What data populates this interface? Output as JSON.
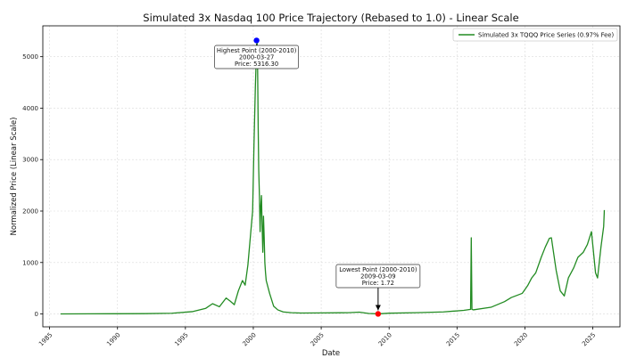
{
  "chart_data": {
    "type": "line",
    "title": "Simulated 3x Nasdaq 100 Price Trajectory (Rebased to 1.0) - Linear Scale",
    "xlabel": "Date",
    "ylabel": "Normalized Price (Linear Scale)",
    "xlim": [
      1984.5,
      2027.0
    ],
    "ylim": [
      -250,
      5600
    ],
    "x_ticks": [
      1985,
      1990,
      1995,
      2000,
      2005,
      2010,
      2015,
      2020,
      2025
    ],
    "y_ticks": [
      0,
      1000,
      2000,
      3000,
      4000,
      5000
    ],
    "grid": true,
    "legend_position": "top-right",
    "series_color": "#228b22",
    "series": [
      {
        "name": "Simulated 3x TQQQ Price Series (0.97% Fee)",
        "x": [
          1985.8,
          1988.0,
          1990.0,
          1992.0,
          1994.0,
          1995.5,
          1996.5,
          1997.0,
          1997.5,
          1998.0,
          1998.3,
          1998.6,
          1998.9,
          1999.2,
          1999.4,
          1999.6,
          1999.8,
          1999.95,
          2000.05,
          2000.15,
          2000.23,
          2000.28,
          2000.32,
          2000.36,
          2000.4,
          2000.45,
          2000.5,
          2000.55,
          2000.6,
          2000.65,
          2000.7,
          2000.75,
          2000.8,
          2000.85,
          2000.9,
          2000.95,
          2001.0,
          2001.2,
          2001.5,
          2001.8,
          2002.2,
          2002.8,
          2003.5,
          2005.0,
          2007.0,
          2007.8,
          2008.5,
          2009.19,
          2010.0,
          2012.0,
          2014.0,
          2015.5,
          2016.0,
          2016.05,
          2016.1,
          2016.2,
          2017.5,
          2018.5,
          2019.0,
          2019.8,
          2020.2,
          2020.5,
          2020.8,
          2021.2,
          2021.5,
          2021.8,
          2021.95,
          2022.3,
          2022.6,
          2022.9,
          2023.2,
          2023.6,
          2023.9,
          2024.3,
          2024.6,
          2024.9,
          2025.2,
          2025.35,
          2025.6,
          2025.8,
          2025.85
        ],
        "y": [
          1,
          3,
          4,
          6,
          14,
          45,
          110,
          200,
          140,
          310,
          250,
          180,
          450,
          650,
          560,
          950,
          1550,
          2000,
          3300,
          4400,
          5100,
          5316.3,
          4700,
          3600,
          2800,
          2300,
          1600,
          2100,
          2300,
          1700,
          1200,
          1900,
          1500,
          1000,
          800,
          650,
          600,
          400,
          150,
          80,
          40,
          25,
          18,
          20,
          25,
          35,
          10,
          1.72,
          15,
          25,
          40,
          70,
          90,
          1480,
          90,
          80,
          130,
          240,
          320,
          400,
          550,
          700,
          800,
          1100,
          1300,
          1470,
          1480,
          850,
          450,
          350,
          700,
          900,
          1100,
          1200,
          1350,
          1600,
          800,
          700,
          1300,
          1700,
          2020
        ]
      }
    ],
    "annotations": [
      {
        "label": "Highest Point (2000-2010)",
        "date": "2000-03-27",
        "price_text": "Price: 5316.30",
        "x": 2000.24,
        "y": 5316.3,
        "marker_color": "#0000ff"
      },
      {
        "label": "Lowest Point (2000-2010)",
        "date": "2009-03-09",
        "price_text": "Price: 1.72",
        "x": 2009.19,
        "y": 1.72,
        "marker_color": "#ff0000"
      }
    ]
  }
}
